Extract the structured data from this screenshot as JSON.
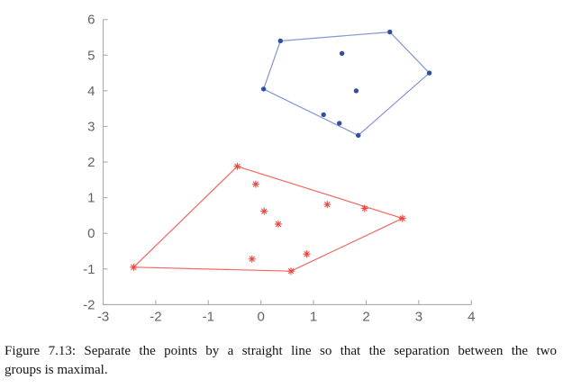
{
  "figure": {
    "caption": {
      "line1": "Figure 7.13: Separate the points by a straight line so that the separation between the two",
      "line2": "groups is maximal."
    }
  },
  "chart_data": {
    "type": "scatter",
    "title": "",
    "xlabel": "",
    "ylabel": "",
    "xlim": [
      -3,
      4
    ],
    "ylim": [
      -2,
      6
    ],
    "x_ticks": [
      -3,
      -2,
      -1,
      0,
      1,
      2,
      3,
      4
    ],
    "y_ticks": [
      -2,
      -1,
      0,
      1,
      2,
      3,
      4,
      5,
      6
    ],
    "grid": false,
    "legend": "none",
    "axis_color": "#ababab",
    "tick_label_color": "#636363",
    "tick_label_size": 15,
    "series": [
      {
        "name": "blue-group",
        "marker": "dot",
        "marker_color": "#30509f",
        "line_color": "#8496d0",
        "points": [
          [
            0.37,
            5.4
          ],
          [
            2.45,
            5.65
          ],
          [
            3.2,
            4.5
          ],
          [
            1.85,
            2.75
          ],
          [
            0.05,
            4.05
          ],
          [
            1.54,
            5.05
          ],
          [
            1.81,
            4.0
          ],
          [
            1.19,
            3.33
          ],
          [
            1.49,
            3.09
          ]
        ],
        "hull": [
          [
            0.05,
            4.05
          ],
          [
            0.37,
            5.4
          ],
          [
            2.45,
            5.65
          ],
          [
            3.2,
            4.5
          ],
          [
            1.85,
            2.75
          ]
        ]
      },
      {
        "name": "red-group",
        "marker": "asterisk",
        "marker_color": "#ed443f",
        "line_color": "#f2675f",
        "points": [
          [
            -0.45,
            1.88
          ],
          [
            -0.1,
            1.38
          ],
          [
            0.06,
            0.62
          ],
          [
            0.33,
            0.26
          ],
          [
            1.26,
            0.81
          ],
          [
            1.97,
            0.7
          ],
          [
            2.69,
            0.42
          ],
          [
            0.87,
            -0.58
          ],
          [
            -0.17,
            -0.72
          ],
          [
            0.57,
            -1.06
          ],
          [
            -2.42,
            -0.95
          ]
        ],
        "hull": [
          [
            -0.45,
            1.88
          ],
          [
            2.69,
            0.42
          ],
          [
            0.57,
            -1.06
          ],
          [
            -2.42,
            -0.95
          ]
        ]
      }
    ]
  }
}
